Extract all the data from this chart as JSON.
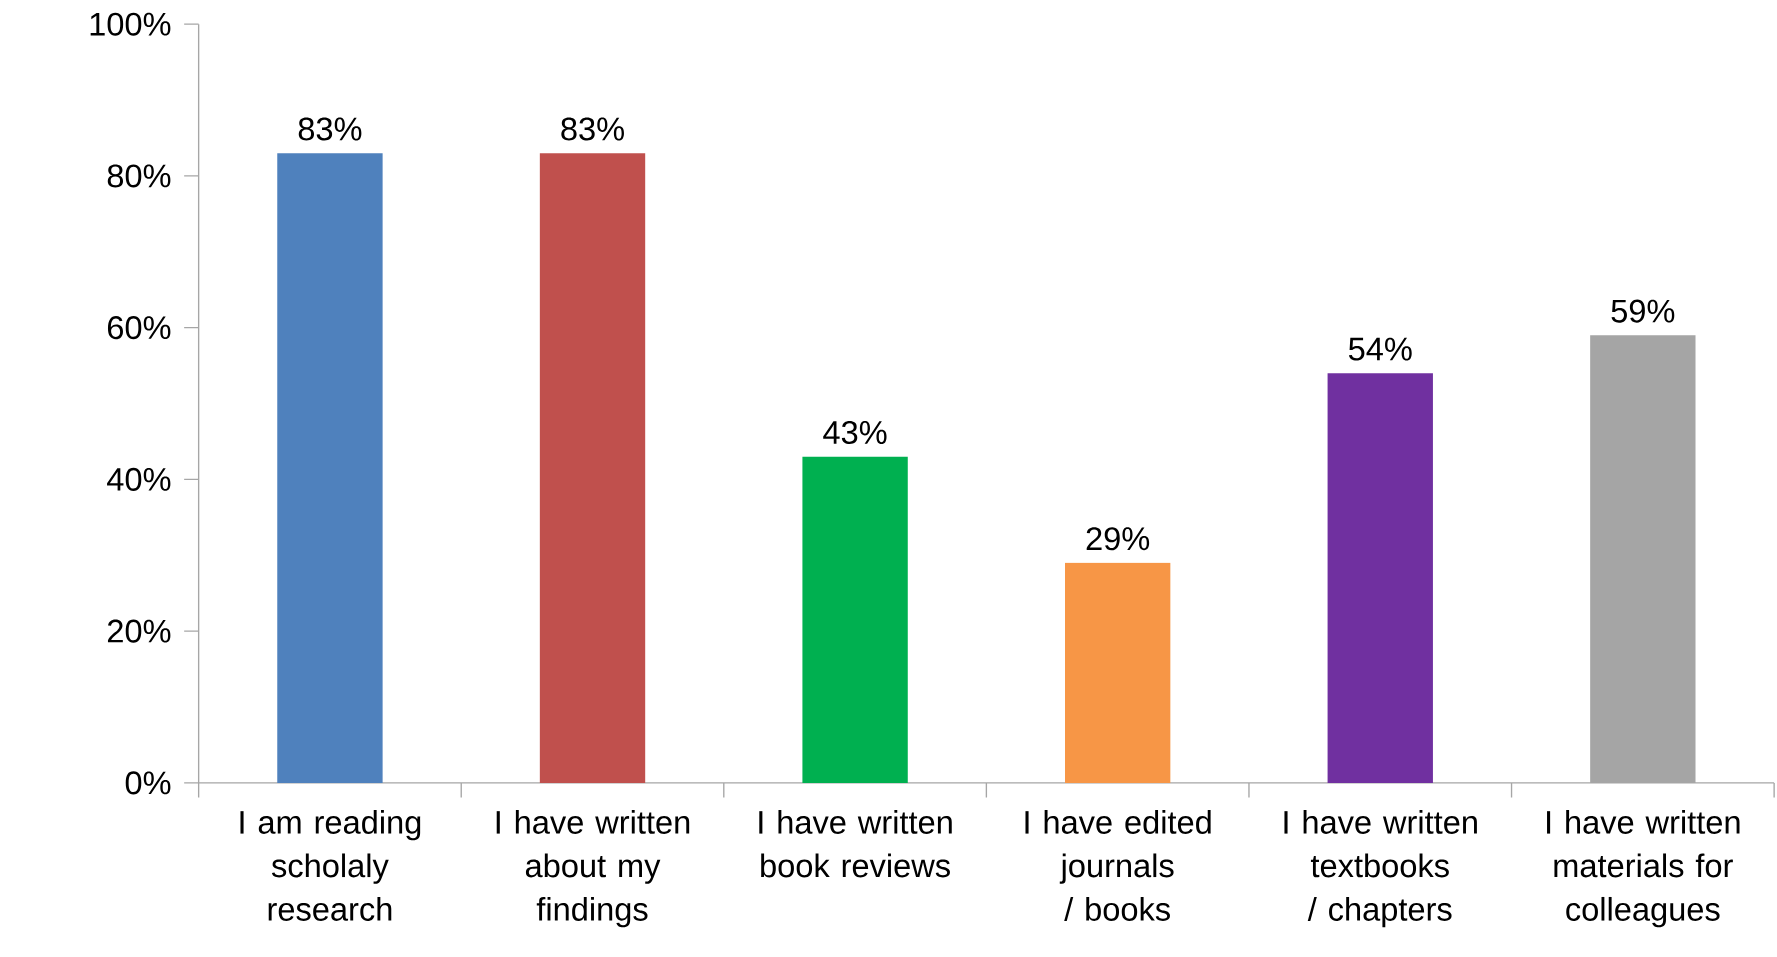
{
  "chart_data": {
    "type": "bar",
    "categories": [
      "I am reading scholaly research",
      "I have written about my findings",
      "I have written book reviews",
      "I have edited journals / books",
      "I have written textbooks / chapters",
      "I have written materials for colleagues"
    ],
    "values": [
      83,
      83,
      43,
      29,
      54,
      59
    ],
    "value_labels": [
      "83%",
      "83%",
      "43%",
      "29%",
      "54%",
      "59%"
    ],
    "colors": [
      "#4f81bd",
      "#c0504d",
      "#00b050",
      "#f79646",
      "#7030a0",
      "#a5a5a5"
    ],
    "ylim": [
      0,
      100
    ],
    "yticks": [
      {
        "value": 0,
        "label": "0%"
      },
      {
        "value": 20,
        "label": "20%"
      },
      {
        "value": 40,
        "label": "40%"
      },
      {
        "value": 60,
        "label": "60%"
      },
      {
        "value": 80,
        "label": "80%"
      },
      {
        "value": 100,
        "label": "100%"
      }
    ],
    "grid": false
  }
}
